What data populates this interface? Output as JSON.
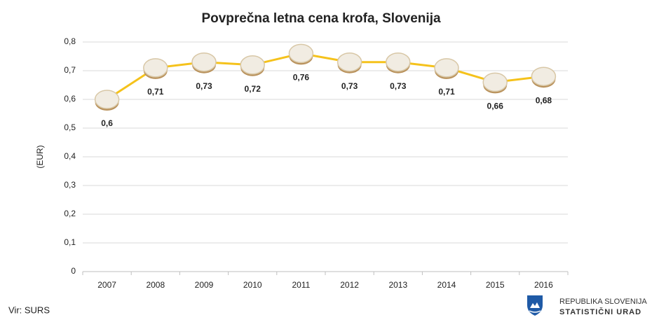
{
  "chart_data": {
    "type": "line",
    "title": "Povprečna letna cena krofa, Slovenija",
    "y_label": "(EUR)",
    "categories": [
      "2007",
      "2008",
      "2009",
      "2010",
      "2011",
      "2012",
      "2013",
      "2014",
      "2015",
      "2016"
    ],
    "values": [
      0.6,
      0.71,
      0.73,
      0.72,
      0.76,
      0.73,
      0.73,
      0.71,
      0.66,
      0.68
    ],
    "value_labels": [
      "0,6",
      "0,71",
      "0,73",
      "0,72",
      "0,76",
      "0,73",
      "0,73",
      "0,71",
      "0,66",
      "0,68"
    ],
    "color": "#f5c21b",
    "ylim": [
      0,
      0.8
    ],
    "yticks": [
      0,
      {
        "value": 0.1,
        "label": "0,1"
      },
      {
        "value": 0.2,
        "label": "0,2"
      },
      {
        "value": 0.3,
        "label": "0,3"
      },
      {
        "value": 0.4,
        "label": "0,4"
      },
      {
        "value": 0.5,
        "label": "0,5"
      },
      {
        "value": 0.6,
        "label": "0,6"
      },
      {
        "value": 0.7,
        "label": "0,7"
      },
      {
        "value": 0.8,
        "label": "0,8"
      }
    ],
    "grid": true
  },
  "footer": {
    "source": "Vir: SURS",
    "logo_line1": "REPUBLIKA SLOVENIJA",
    "logo_line2": "STATISTIČNI URAD"
  }
}
